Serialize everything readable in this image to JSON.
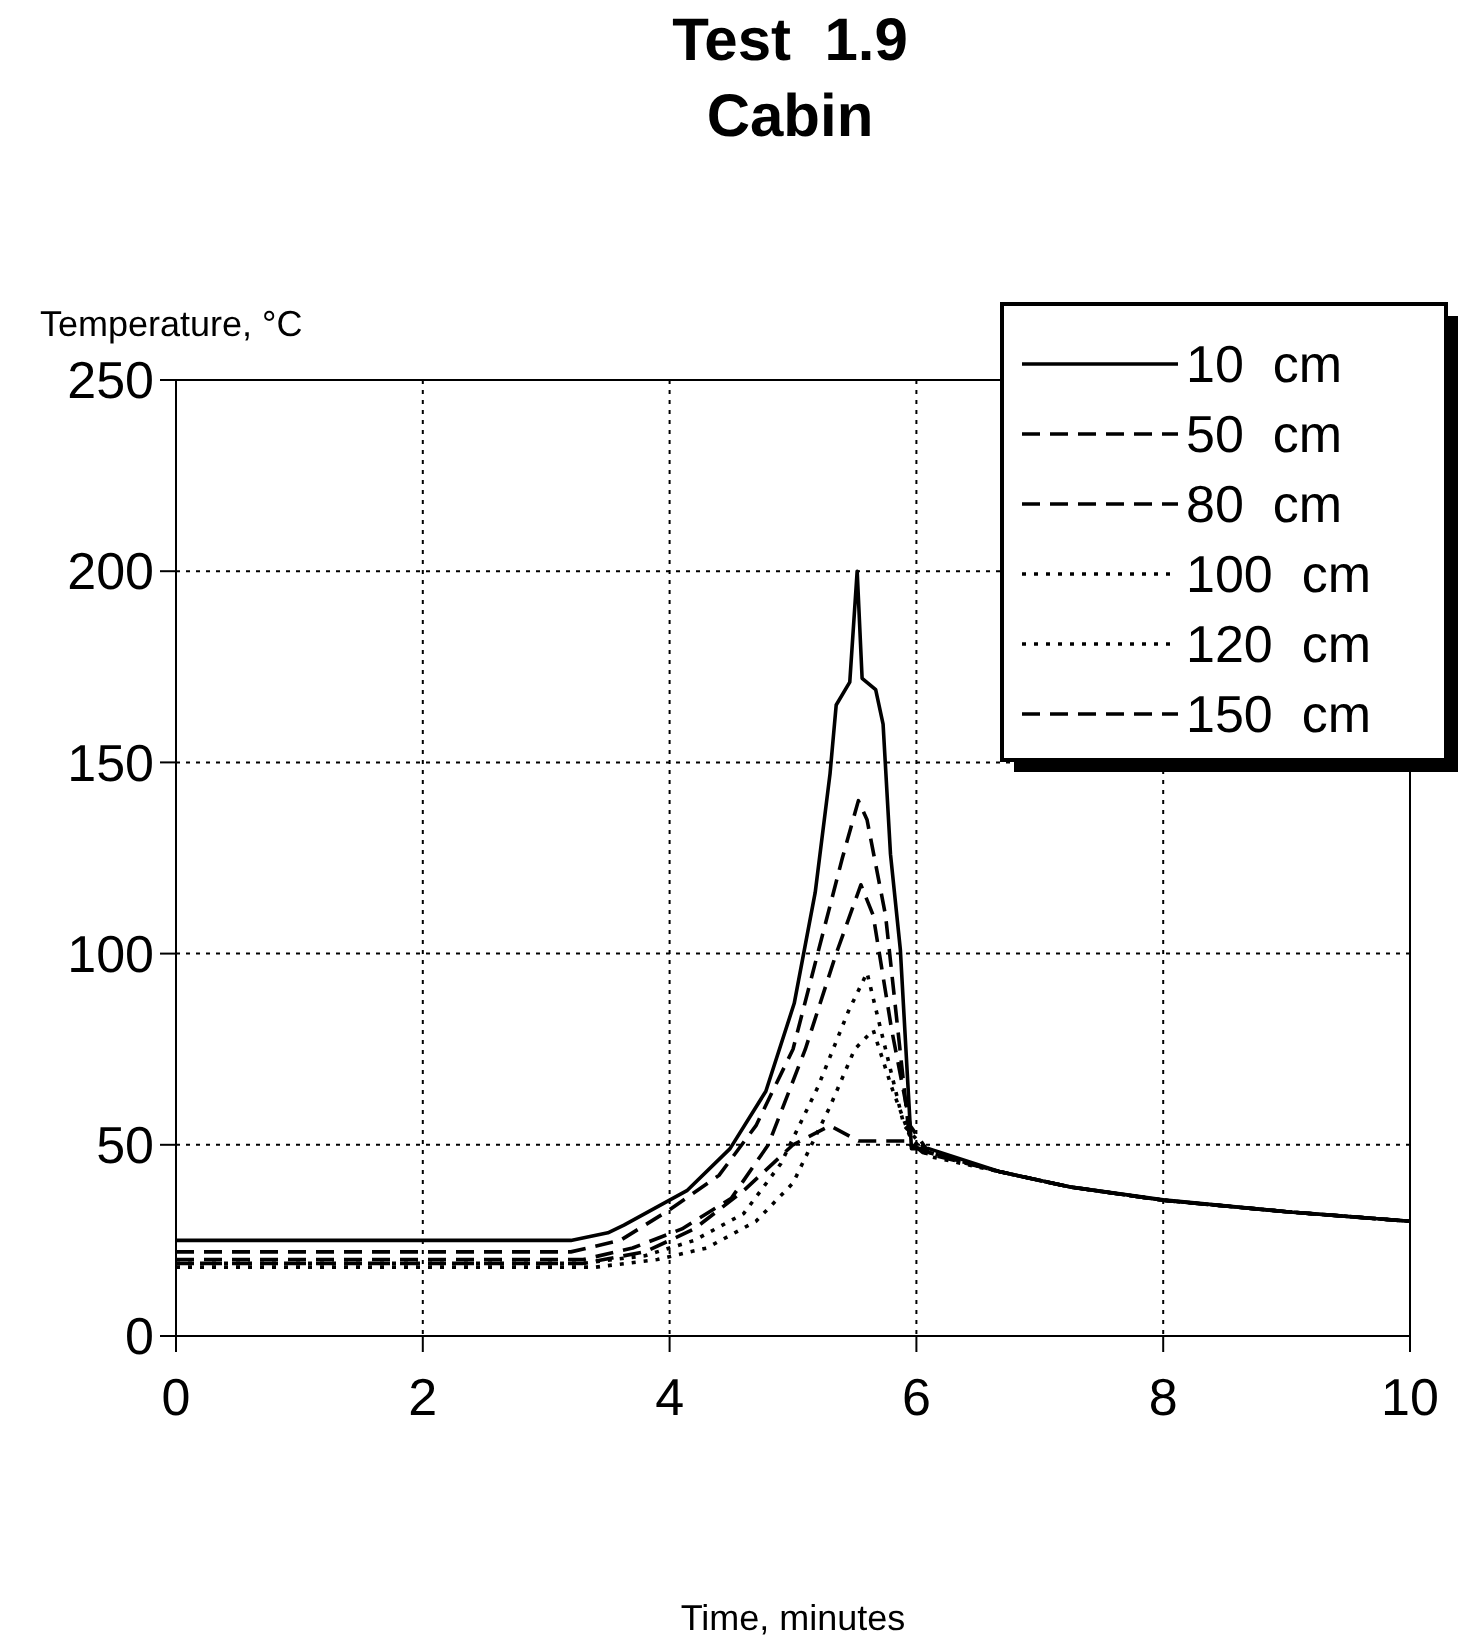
{
  "chart_data": {
    "type": "line",
    "title": "Test  1.9",
    "subtitle": "Cabin",
    "xlabel": "Time, minutes",
    "ylabel": "Temperature, °C",
    "xlim": [
      0,
      10
    ],
    "ylim": [
      0,
      250
    ],
    "xticks": [
      0,
      2,
      4,
      6,
      8,
      10
    ],
    "yticks": [
      0,
      50,
      100,
      150,
      200,
      250
    ],
    "grid": true,
    "legend": "top right",
    "marker": "none",
    "series": [
      {
        "name": "10  cm",
        "color": "#000000",
        "line_style": "solid",
        "x": [
          0,
          3.2,
          3.5,
          3.63,
          4.14,
          4.49,
          4.78,
          5.01,
          5.18,
          5.3,
          5.35,
          5.46,
          5.52,
          5.56,
          5.67,
          5.73,
          5.79,
          5.87,
          5.96,
          6.1,
          6.67,
          7.24,
          8,
          9,
          10
        ],
        "values": [
          25,
          25,
          27,
          29,
          38,
          49,
          64,
          87,
          116,
          147,
          165,
          171,
          200,
          172,
          169,
          160,
          126,
          101,
          49,
          49,
          43,
          39,
          35.6,
          32.5,
          30
        ]
      },
      {
        "name": "50  cm",
        "color": "#000000",
        "line_style": "dashed",
        "x": [
          0,
          3.2,
          3.6,
          4,
          4.4,
          4.7,
          5,
          5.2,
          5.4,
          5.53,
          5.6,
          5.75,
          5.85,
          5.95,
          6.1,
          6.67,
          7.24,
          8,
          9,
          10
        ],
        "values": [
          22,
          22,
          25,
          33,
          42,
          55,
          75,
          100,
          125,
          140,
          135,
          110,
          80,
          50,
          48,
          43,
          39,
          35.5,
          32.5,
          30
        ]
      },
      {
        "name": "80  cm",
        "color": "#000000",
        "line_style": "dashed",
        "x": [
          0,
          3.3,
          3.7,
          4.1,
          4.5,
          4.8,
          5.1,
          5.35,
          5.55,
          5.65,
          5.8,
          5.95,
          6.1,
          6.67,
          7.24,
          8,
          9,
          10
        ],
        "values": [
          20,
          20,
          23,
          28,
          36,
          50,
          75,
          100,
          118,
          110,
          80,
          55,
          48,
          43,
          39,
          35.5,
          32.5,
          30
        ]
      },
      {
        "name": "100  cm",
        "color": "#000000",
        "line_style": "dotted",
        "x": [
          0,
          3.3,
          3.8,
          4.2,
          4.6,
          4.9,
          5.2,
          5.45,
          5.6,
          5.75,
          5.9,
          6.1,
          6.67,
          7.24,
          8,
          9,
          10
        ],
        "values": [
          19,
          19,
          21,
          25,
          32,
          45,
          65,
          85,
          95,
          75,
          55,
          48,
          43,
          39,
          35.5,
          32.5,
          30
        ]
      },
      {
        "name": "120  cm",
        "color": "#000000",
        "line_style": "dotted",
        "x": [
          0,
          3.4,
          3.9,
          4.3,
          4.7,
          5,
          5.3,
          5.5,
          5.65,
          5.8,
          5.95,
          6.1,
          6.67,
          7.24,
          8,
          9,
          10
        ],
        "values": [
          18,
          18,
          20,
          23,
          30,
          40,
          60,
          75,
          80,
          65,
          52,
          47,
          43,
          39,
          35.5,
          32.5,
          30
        ]
      },
      {
        "name": "150  cm",
        "color": "#000000",
        "line_style": "dashed",
        "x": [
          0,
          3.3,
          3.8,
          4.2,
          4.6,
          5,
          5.3,
          5.53,
          5.94,
          6.05,
          6.67,
          7.24,
          8,
          9,
          10
        ],
        "values": [
          19,
          19,
          22,
          28,
          38,
          50,
          55,
          51,
          51,
          48,
          43,
          39,
          35.5,
          32.5,
          30
        ]
      }
    ]
  }
}
